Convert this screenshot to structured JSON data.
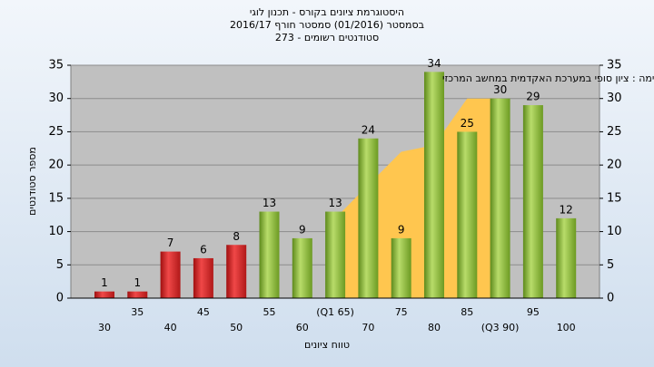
{
  "chart_data": {
    "type": "bar",
    "title": "היסטוגרמת ציונים בקורס - תכנון לוגי",
    "subtitle": "בסמסטר  (01/2016)  סמסטר חורף 2016/17",
    "subtitle2": "סטודנטים רשומים - 273",
    "annotation": "רשימה : ציון סופי במערכת האקדמית במחשב המרכזי",
    "y_label": "מספר סטודנטים",
    "x_label": "טווח ציונים",
    "categories": [
      "30",
      "35",
      "40",
      "45",
      "50",
      "55",
      "60",
      "(Q1 65)",
      "70",
      "75",
      "80",
      "85",
      "(Q3 90)",
      "95",
      "100"
    ],
    "series": [
      {
        "values": [
          1,
          1,
          7,
          6,
          8,
          13,
          9,
          13,
          24,
          9,
          34,
          25,
          30,
          29,
          12
        ],
        "colors": [
          "red",
          "red",
          "red",
          "red",
          "red",
          "green",
          "green",
          "green",
          "green",
          "green",
          "green",
          "green",
          "green",
          "green",
          "green"
        ]
      },
      {
        "type": "area",
        "color": "#ffc64f",
        "values": [
          null,
          null,
          null,
          null,
          null,
          null,
          null,
          12,
          17,
          22,
          23,
          30,
          30,
          null,
          null
        ]
      }
    ],
    "ylim": [
      0,
      35
    ],
    "yticks": [
      0,
      5,
      10,
      15,
      20,
      25,
      30,
      35
    ],
    "grid": true
  }
}
